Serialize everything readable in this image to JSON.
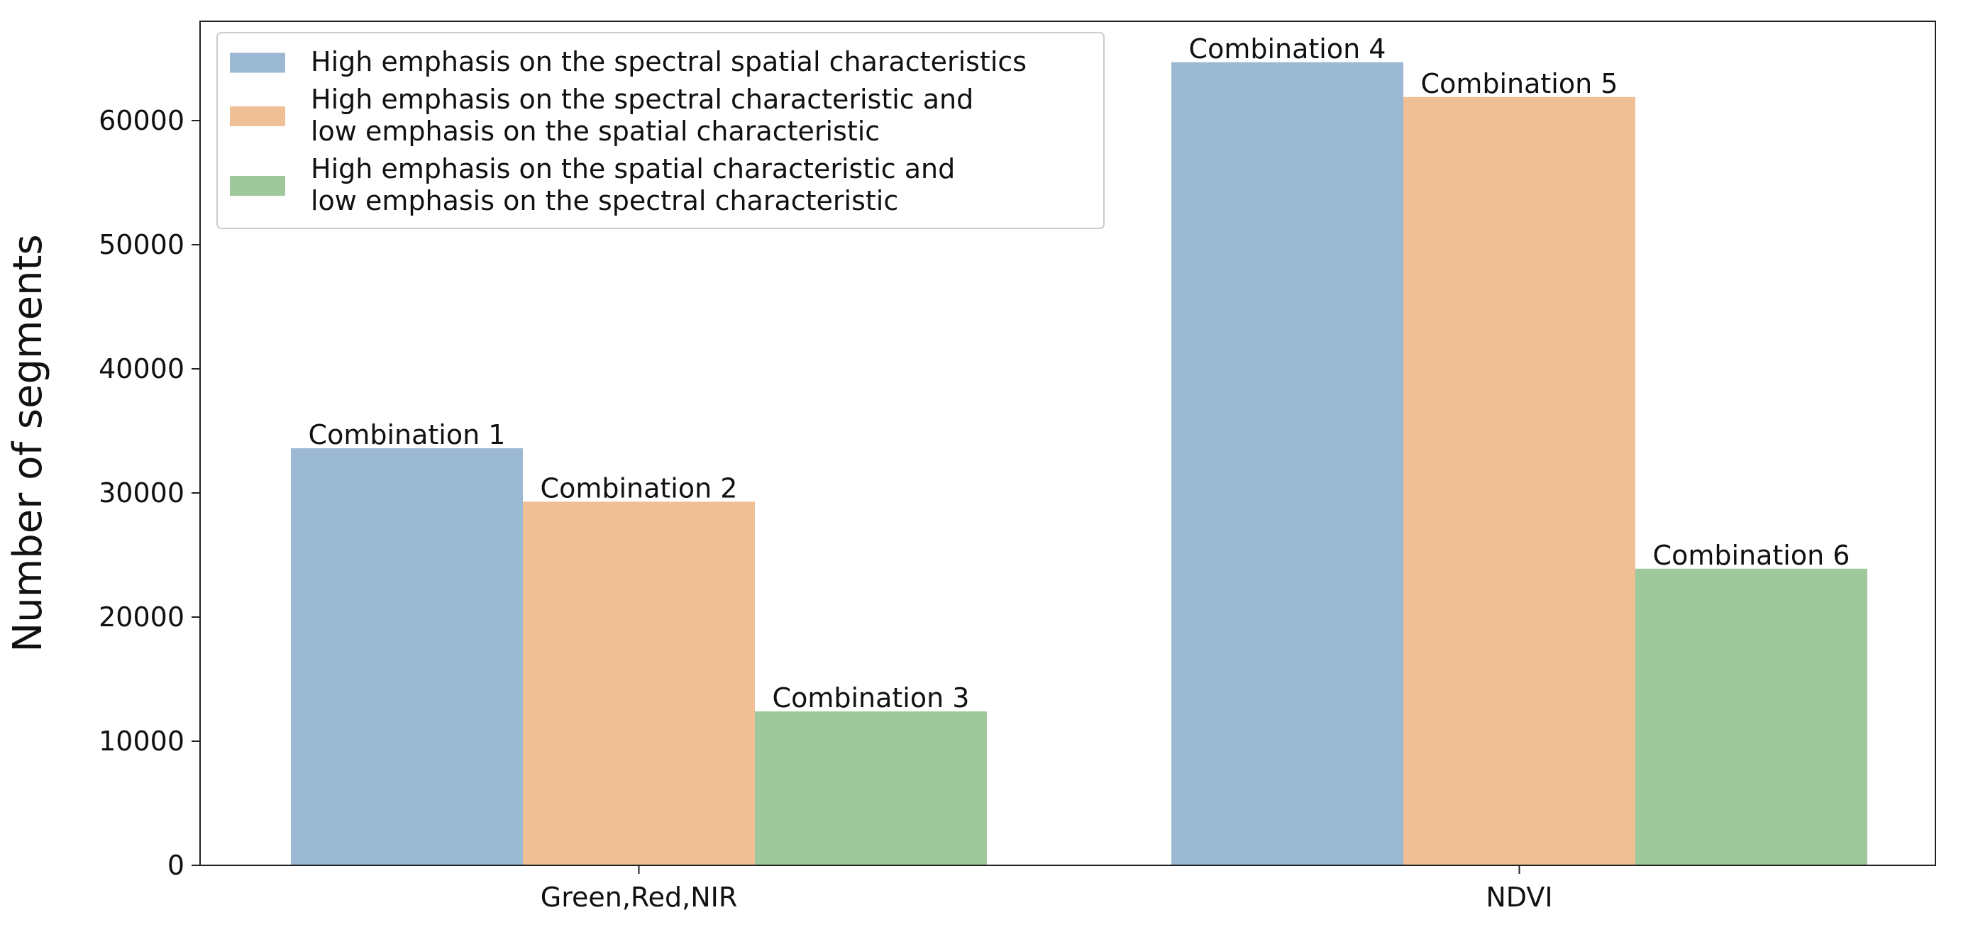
{
  "chart_data": {
    "type": "bar",
    "title": "",
    "xlabel": "",
    "ylabel": "Number of segments",
    "categories": [
      "Green,Red,NIR",
      "NDVI"
    ],
    "ylim": [
      0,
      68000
    ],
    "yticks": [
      0,
      10000,
      20000,
      30000,
      40000,
      50000,
      60000
    ],
    "grid": false,
    "legend_position": "top-left",
    "series": [
      {
        "name": "High emphasis on the spectral spatial characteristics",
        "legend_lines": [
          "High emphasis on the spectral spatial characteristics"
        ],
        "color": "#9bb9d2",
        "values": [
          33600,
          64700
        ],
        "labels": [
          "Combination 1",
          "Combination 4"
        ]
      },
      {
        "name": "High emphasis on the spectral characteristic and low emphasis on the spatial characteristic",
        "legend_lines": [
          "High emphasis on the spectral characteristic and",
          " low emphasis on the spatial characteristic"
        ],
        "color": "#efbf95",
        "values": [
          29300,
          61900
        ],
        "labels": [
          "Combination 2",
          "Combination 5"
        ]
      },
      {
        "name": "High emphasis on the spatial characteristic and low emphasis on the spectral characteristic",
        "legend_lines": [
          "High emphasis on the spatial characteristic and",
          " low emphasis on the spectral characteristic"
        ],
        "color": "#9fc99b",
        "values": [
          12400,
          23900
        ],
        "labels": [
          "Combination 3",
          "Combination 6"
        ]
      }
    ]
  }
}
